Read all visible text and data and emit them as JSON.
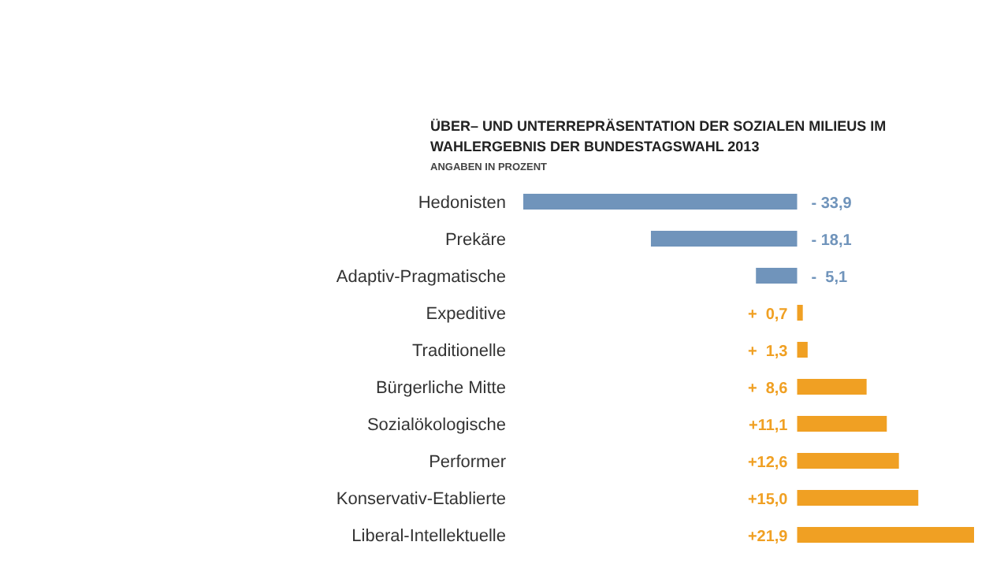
{
  "chart_data": {
    "type": "bar",
    "orientation": "horizontal",
    "title": "ÜBER– UND UNTERREPRÄSENTATION DER SOZIALEN MILIEUS IM WAHLERGEBNIS DER BUNDESTAGSWAHL 2013",
    "subtitle": "ANGABEN IN PROZENT",
    "categories": [
      "Hedonisten",
      "Prekäre",
      "Adaptiv-Pragmatische",
      "Expeditive",
      "Traditionelle",
      "Bürgerliche Mitte",
      "Sozialökologische",
      "Performer",
      "Konservativ-Etablierte",
      "Liberal-Intellektuelle"
    ],
    "values": [
      -33.9,
      -18.1,
      -5.1,
      0.7,
      1.3,
      8.6,
      11.1,
      12.6,
      15.0,
      21.9
    ],
    "colors": [
      "#7094bb",
      "#7094bb",
      "#7094bb",
      "#f0a023",
      "#f0a023",
      "#f0a023",
      "#f0a023",
      "#f0a023",
      "#f0a023",
      "#f0a023"
    ],
    "value_labels": [
      "- 33,9",
      "- 18,1",
      "-  5,1",
      "+  0,7",
      "+  1,3",
      "+  8,6",
      "+11,1",
      "+12,6",
      "+15,0",
      "+21,9"
    ]
  }
}
